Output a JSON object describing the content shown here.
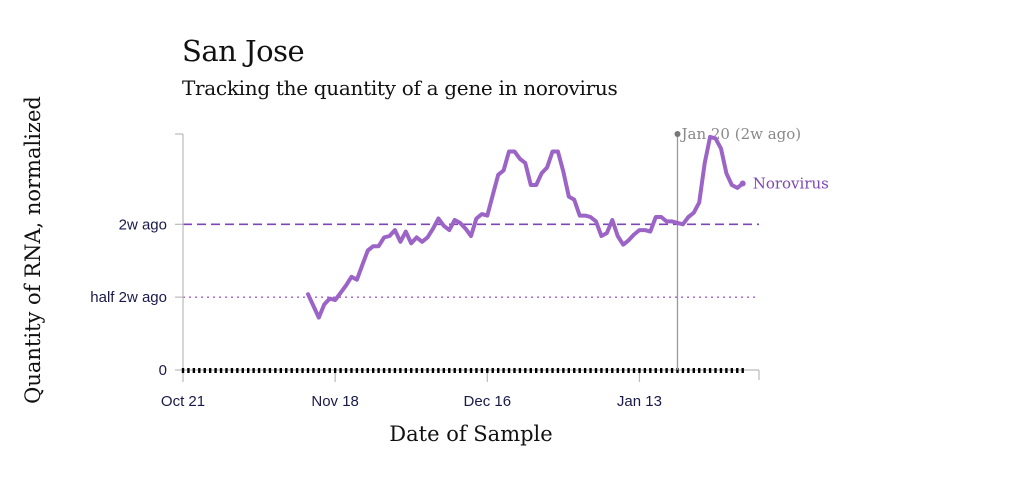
{
  "chart_data": {
    "type": "line",
    "title": "San Jose",
    "subtitle": "Tracking the quantity of a gene in norovirus",
    "xlabel": "Date of Sample",
    "ylabel": "Quantity of RNA, normalized",
    "x_ticks": [
      "Oct 21",
      "Nov 18",
      "Dec 16",
      "Jan 13"
    ],
    "x_tick_days": [
      0,
      28,
      56,
      84
    ],
    "y_ticks": [
      {
        "label": "0",
        "value": 0
      },
      {
        "label": "half 2w ago",
        "value": 0.5
      },
      {
        "label": "2w ago",
        "value": 1.0
      }
    ],
    "ylim": [
      0,
      1.62
    ],
    "xlim_days": [
      0,
      106
    ],
    "reference_lines": [
      {
        "label": "2w ago",
        "value": 1.0,
        "style": "dashed",
        "color": "#7e45b5"
      },
      {
        "label": "half 2w ago",
        "value": 0.5,
        "style": "dotted",
        "color": "#a35cd6"
      }
    ],
    "annotation": {
      "text": "Jan 20 (2w ago)",
      "day": 91
    },
    "series": [
      {
        "name": "Norovirus",
        "color": "#9b64c6",
        "days": [
          23,
          24,
          25,
          26,
          27,
          28,
          29,
          30,
          31,
          32,
          33,
          34,
          35,
          36,
          37,
          38,
          39,
          40,
          41,
          42,
          43,
          44,
          45,
          46,
          47,
          48,
          49,
          50,
          51,
          52,
          53,
          54,
          55,
          56,
          57,
          58,
          59,
          60,
          61,
          62,
          63,
          64,
          65,
          66,
          67,
          68,
          69,
          70,
          71,
          72,
          73,
          74,
          75,
          76,
          77,
          78,
          79,
          80,
          81,
          82,
          83,
          84,
          85,
          86,
          87,
          88,
          89,
          90,
          91,
          92,
          93,
          94,
          95,
          96,
          97,
          98,
          99,
          100,
          101,
          102,
          103
        ],
        "values": [
          0.52,
          0.44,
          0.36,
          0.45,
          0.49,
          0.48,
          0.53,
          0.58,
          0.64,
          0.62,
          0.72,
          0.82,
          0.85,
          0.85,
          0.91,
          0.92,
          0.96,
          0.88,
          0.95,
          0.87,
          0.91,
          0.88,
          0.91,
          0.97,
          1.04,
          0.99,
          0.96,
          1.03,
          1.01,
          0.97,
          0.92,
          1.04,
          1.07,
          1.06,
          1.2,
          1.34,
          1.37,
          1.5,
          1.5,
          1.45,
          1.42,
          1.27,
          1.27,
          1.35,
          1.39,
          1.5,
          1.5,
          1.36,
          1.19,
          1.17,
          1.06,
          1.06,
          1.05,
          1.02,
          0.92,
          0.94,
          1.03,
          0.92,
          0.86,
          0.89,
          0.93,
          0.96,
          0.96,
          0.95,
          1.05,
          1.05,
          1.02,
          1.02,
          1.01,
          1.0,
          1.05,
          1.08,
          1.15,
          1.42,
          1.6,
          1.59,
          1.52,
          1.35,
          1.27,
          1.25,
          1.28
        ]
      }
    ]
  }
}
